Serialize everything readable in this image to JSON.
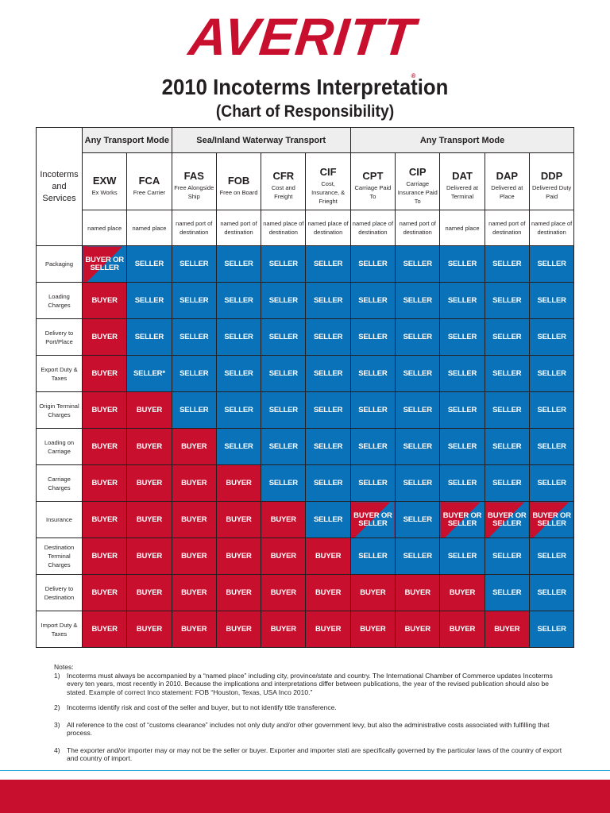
{
  "header": {
    "logo": "AVERITT",
    "logo_mark": "®",
    "title": "2010 Incoterms Interpretation",
    "subtitle": "(Chart of Responsibility)"
  },
  "table": {
    "corner_label": "Incoterms and Services",
    "groups": [
      {
        "label": "Any Transport Mode",
        "span": 2
      },
      {
        "label": "Sea/Inland Waterway Transport",
        "span": 4
      },
      {
        "label": "Any Transport Mode",
        "span": 5
      }
    ],
    "terms": [
      {
        "code": "EXW",
        "desc": "Ex Works",
        "named": "named place"
      },
      {
        "code": "FCA",
        "desc": "Free Carrier",
        "named": "named place"
      },
      {
        "code": "FAS",
        "desc": "Free Alongside Ship",
        "named": "named port of destination"
      },
      {
        "code": "FOB",
        "desc": "Free on Board",
        "named": "named port of destination"
      },
      {
        "code": "CFR",
        "desc": "Cost and Freight",
        "named": "named place of destination"
      },
      {
        "code": "CIF",
        "desc": "Cost, Insurance, & Frieght",
        "named": "named place of destination"
      },
      {
        "code": "CPT",
        "desc": "Carriage Paid To",
        "named": "named place of destination"
      },
      {
        "code": "CIP",
        "desc": "Carriage Insurance Paid To",
        "named": "named port of destination"
      },
      {
        "code": "DAT",
        "desc": "Delivered at Terminal",
        "named": "named place"
      },
      {
        "code": "DAP",
        "desc": "Delivered at Place",
        "named": "named port of destination"
      },
      {
        "code": "DDP",
        "desc": "Delivered Duty Paid",
        "named": "named place of destination"
      }
    ],
    "rows": [
      {
        "service": "Packaging",
        "cells": [
          "BUYER OR SELLER",
          "SELLER",
          "SELLER",
          "SELLER",
          "SELLER",
          "SELLER",
          "SELLER",
          "SELLER",
          "SELLER",
          "SELLER",
          "SELLER"
        ]
      },
      {
        "service": "Loading Charges",
        "cells": [
          "BUYER",
          "SELLER",
          "SELLER",
          "SELLER",
          "SELLER",
          "SELLER",
          "SELLER",
          "SELLER",
          "SELLER",
          "SELLER",
          "SELLER"
        ]
      },
      {
        "service": "Delivery to Port/Place",
        "cells": [
          "BUYER",
          "SELLER",
          "SELLER",
          "SELLER",
          "SELLER",
          "SELLER",
          "SELLER",
          "SELLER",
          "SELLER",
          "SELLER",
          "SELLER"
        ]
      },
      {
        "service": "Export Duty & Taxes",
        "cells": [
          "BUYER",
          "SELLER*",
          "SELLER",
          "SELLER",
          "SELLER",
          "SELLER",
          "SELLER",
          "SELLER",
          "SELLER",
          "SELLER",
          "SELLER"
        ]
      },
      {
        "service": "Origin Terminal Charges",
        "cells": [
          "BUYER",
          "BUYER",
          "SELLER",
          "SELLER",
          "SELLER",
          "SELLER",
          "SELLER",
          "SELLER",
          "SELLER",
          "SELLER",
          "SELLER"
        ]
      },
      {
        "service": "Loading on Carriage",
        "cells": [
          "BUYER",
          "BUYER",
          "BUYER",
          "SELLER",
          "SELLER",
          "SELLER",
          "SELLER",
          "SELLER",
          "SELLER",
          "SELLER",
          "SELLER"
        ]
      },
      {
        "service": "Carriage Charges",
        "cells": [
          "BUYER",
          "BUYER",
          "BUYER",
          "BUYER",
          "SELLER",
          "SELLER",
          "SELLER",
          "SELLER",
          "SELLER",
          "SELLER",
          "SELLER"
        ]
      },
      {
        "service": "Insurance",
        "cells": [
          "BUYER",
          "BUYER",
          "BUYER",
          "BUYER",
          "BUYER",
          "SELLER",
          "BUYER OR SELLER",
          "SELLER",
          "BUYER OR SELLER",
          "BUYER OR SELLER",
          "BUYER OR SELLER"
        ]
      },
      {
        "service": "Destination Terminal Charges",
        "cells": [
          "BUYER",
          "BUYER",
          "BUYER",
          "BUYER",
          "BUYER",
          "BUYER",
          "SELLER",
          "SELLER",
          "SELLER",
          "SELLER",
          "SELLER"
        ]
      },
      {
        "service": "Delivery to Destination",
        "cells": [
          "BUYER",
          "BUYER",
          "BUYER",
          "BUYER",
          "BUYER",
          "BUYER",
          "BUYER",
          "BUYER",
          "BUYER",
          "SELLER",
          "SELLER"
        ]
      },
      {
        "service": "Import Duty & Taxes",
        "cells": [
          "BUYER",
          "BUYER",
          "BUYER",
          "BUYER",
          "BUYER",
          "BUYER",
          "BUYER",
          "BUYER",
          "BUYER",
          "BUYER",
          "SELLER"
        ]
      }
    ]
  },
  "notes": {
    "heading": "Notes:",
    "items": [
      {
        "num": "1)",
        "text": "Incoterms must always be accompanied by a “named place” including city, province/state and country. The International Chamber of Commerce updates Incoterms every ten years, most recently in 2010. Because the implications and interpretations differ between publications, the year of the revised publication should also be stated. Example of correct Inco statement: FOB “Houston, Texas, USA Inco 2010.”"
      },
      {
        "num": "2)",
        "text": "Incoterms identify risk and cost of the seller and buyer, but to not identify title transference."
      },
      {
        "num": "3)",
        "text": "All reference to the cost of “customs clearance” includes not only duty and/or other government levy, but also the administrative costs associated with fulfilling that process."
      },
      {
        "num": "4)",
        "text": "The exporter and/or importer may or may not be the seller or buyer. Exporter and importer stati are specifically governed by the particular laws of the country of export and country of import."
      }
    ]
  },
  "colors": {
    "brand_red": "#c8102e",
    "seller_blue": "#0a72b8",
    "buyer_red": "#c8102e",
    "rule_blue": "#2aa6dc"
  }
}
